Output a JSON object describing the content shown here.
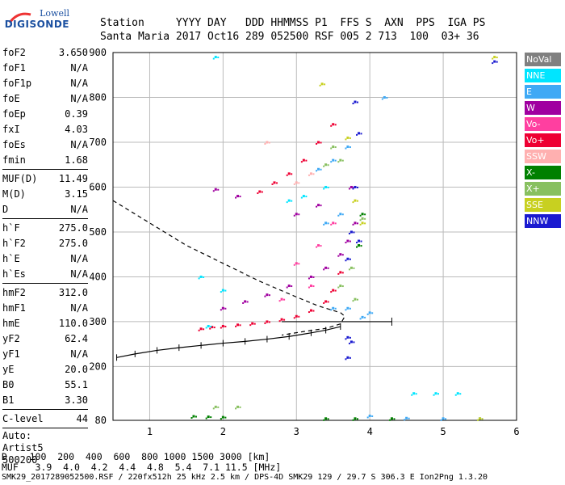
{
  "logo": {
    "line1": "Lowell",
    "line2": "DIGISONDE"
  },
  "header": {
    "labels_row": "Station     YYYY DAY   DDD HHMMSS P1  FFS S  AXN  PPS  IGA PS",
    "values_row": "Santa Maria 2017 Oct16 289 052500 RSF 005 2 713  100  03+ 36"
  },
  "params": [
    {
      "group": [
        {
          "key": "foF2",
          "value": "3.650"
        },
        {
          "key": "foF1",
          "value": "N/A"
        },
        {
          "key": "foF1p",
          "value": "N/A"
        },
        {
          "key": "foE",
          "value": "N/A"
        },
        {
          "key": "foEp",
          "value": "0.39"
        },
        {
          "key": "fxI",
          "value": "4.03"
        },
        {
          "key": "foEs",
          "value": "N/A"
        },
        {
          "key": "fmin",
          "value": "1.68"
        }
      ]
    },
    {
      "group": [
        {
          "key": "MUF(D)",
          "value": "11.49"
        },
        {
          "key": "M(D)",
          "value": "3.15"
        },
        {
          "key": "D",
          "value": "N/A"
        }
      ]
    },
    {
      "group": [
        {
          "key": "h`F",
          "value": "275.0"
        },
        {
          "key": "h`F2",
          "value": "275.0"
        },
        {
          "key": "h`E",
          "value": "N/A"
        },
        {
          "key": "h`Es",
          "value": "N/A"
        }
      ]
    },
    {
      "group": [
        {
          "key": "hmF2",
          "value": "312.0"
        },
        {
          "key": "hmF1",
          "value": "N/A"
        },
        {
          "key": "hmE",
          "value": "110.0"
        },
        {
          "key": "yF2",
          "value": "62.4"
        },
        {
          "key": "yF1",
          "value": "N/A"
        },
        {
          "key": "yE",
          "value": "20.0"
        },
        {
          "key": "B0",
          "value": "55.1"
        },
        {
          "key": "B1",
          "value": "3.30"
        }
      ]
    },
    {
      "group": [
        {
          "key": "C-level",
          "value": "44"
        }
      ]
    }
  ],
  "autoscaling": {
    "line1": "Auto:",
    "line2": "Artist5",
    "line3": "500200"
  },
  "legend": [
    {
      "label": "NoVal",
      "color": "#808080"
    },
    {
      "label": "NNE",
      "color": "#00e5ff"
    },
    {
      "label": "E",
      "color": "#3fa9f5"
    },
    {
      "label": "W",
      "color": "#a000a0"
    },
    {
      "label": "Vo-",
      "color": "#ff3fa0"
    },
    {
      "label": "Vo+",
      "color": "#ee0033"
    },
    {
      "label": "SSW",
      "color": "#ffb0b0"
    },
    {
      "label": "X-",
      "color": "#008000"
    },
    {
      "label": "X+",
      "color": "#88c060"
    },
    {
      "label": "SSE",
      "color": "#c8d020"
    },
    {
      "label": "NNW",
      "color": "#1a1ad0"
    }
  ],
  "chart_data": {
    "type": "scatter",
    "title": "",
    "xlabel": "",
    "ylabel": "",
    "xlim": [
      0.5,
      6.0
    ],
    "ylim": [
      80,
      900
    ],
    "x_ticks": [
      "1",
      "2",
      "3",
      "4",
      "5",
      "6"
    ],
    "x_tick_values": [
      1,
      2,
      3,
      4,
      5,
      6
    ],
    "y_ticks": [
      "80",
      "200",
      "300",
      "400",
      "500",
      "600",
      "700",
      "800",
      "900"
    ],
    "y_tick_values": [
      80,
      200,
      300,
      400,
      500,
      600,
      700,
      800,
      900
    ],
    "grid": true,
    "series": [
      {
        "legend": "Vo+",
        "color": "#ee0033",
        "points": [
          [
            1.7,
            284
          ],
          [
            1.85,
            288
          ],
          [
            2.0,
            290
          ],
          [
            2.2,
            293
          ],
          [
            2.4,
            296
          ],
          [
            2.6,
            300
          ],
          [
            2.8,
            305
          ],
          [
            3.0,
            312
          ],
          [
            3.2,
            325
          ],
          [
            3.4,
            345
          ],
          [
            3.5,
            370
          ],
          [
            3.6,
            410
          ],
          [
            2.5,
            590
          ],
          [
            2.7,
            610
          ],
          [
            2.9,
            630
          ],
          [
            3.1,
            660
          ],
          [
            3.3,
            700
          ],
          [
            3.5,
            740
          ]
        ]
      },
      {
        "legend": "W",
        "color": "#a000a0",
        "points": [
          [
            2.0,
            330
          ],
          [
            2.3,
            345
          ],
          [
            2.6,
            360
          ],
          [
            2.9,
            380
          ],
          [
            3.2,
            400
          ],
          [
            3.4,
            420
          ],
          [
            3.6,
            450
          ],
          [
            3.7,
            480
          ],
          [
            3.8,
            520
          ],
          [
            3.75,
            600
          ],
          [
            3.3,
            560
          ],
          [
            3.0,
            540
          ],
          [
            1.9,
            595
          ],
          [
            2.2,
            580
          ]
        ]
      },
      {
        "legend": "NNW",
        "color": "#1a1ad0",
        "points": [
          [
            3.7,
            440
          ],
          [
            3.75,
            500
          ],
          [
            3.8,
            600
          ],
          [
            3.85,
            720
          ],
          [
            3.8,
            790
          ],
          [
            3.7,
            265
          ],
          [
            3.75,
            255
          ],
          [
            3.7,
            220
          ],
          [
            3.85,
            480
          ],
          [
            5.7,
            880
          ]
        ]
      },
      {
        "legend": "E",
        "color": "#3fa9f5",
        "points": [
          [
            3.5,
            330
          ],
          [
            3.7,
            330
          ],
          [
            3.9,
            310
          ],
          [
            4.0,
            320
          ],
          [
            3.3,
            640
          ],
          [
            3.5,
            660
          ],
          [
            3.7,
            690
          ],
          [
            3.4,
            520
          ],
          [
            3.6,
            540
          ],
          [
            4.2,
            800
          ],
          [
            4.0,
            90
          ],
          [
            4.5,
            85
          ],
          [
            5.0,
            84
          ],
          [
            5.5,
            84
          ]
        ]
      },
      {
        "legend": "X+",
        "color": "#88c060",
        "points": [
          [
            3.6,
            380
          ],
          [
            3.75,
            420
          ],
          [
            3.85,
            470
          ],
          [
            3.9,
            530
          ],
          [
            3.8,
            350
          ],
          [
            3.4,
            650
          ],
          [
            3.6,
            660
          ],
          [
            3.5,
            690
          ],
          [
            1.9,
            110
          ],
          [
            2.2,
            110
          ]
        ]
      },
      {
        "legend": "X-",
        "color": "#008000",
        "points": [
          [
            3.85,
            470
          ],
          [
            3.9,
            540
          ],
          [
            1.6,
            89
          ],
          [
            1.8,
            88
          ],
          [
            2.0,
            87
          ],
          [
            3.4,
            84
          ],
          [
            3.8,
            84
          ],
          [
            4.3,
            84
          ]
        ]
      },
      {
        "legend": "NNE",
        "color": "#00e5ff",
        "points": [
          [
            1.8,
            290
          ],
          [
            2.9,
            570
          ],
          [
            3.1,
            580
          ],
          [
            3.4,
            600
          ],
          [
            1.7,
            400
          ],
          [
            2.0,
            370
          ],
          [
            4.6,
            140
          ],
          [
            4.9,
            140
          ],
          [
            5.2,
            140
          ],
          [
            1.9,
            890
          ]
        ]
      },
      {
        "legend": "Vo-",
        "color": "#ff3fa0",
        "points": [
          [
            3.0,
            430
          ],
          [
            3.3,
            470
          ],
          [
            3.5,
            520
          ],
          [
            2.8,
            350
          ],
          [
            3.2,
            380
          ]
        ]
      },
      {
        "legend": "SSE",
        "color": "#c8d020",
        "points": [
          [
            3.8,
            570
          ],
          [
            3.9,
            520
          ],
          [
            3.35,
            830
          ],
          [
            3.7,
            710
          ],
          [
            5.7,
            890
          ],
          [
            5.5,
            84
          ]
        ]
      },
      {
        "legend": "SSW",
        "color": "#ffb0b0",
        "points": [
          [
            3.0,
            610
          ],
          [
            3.2,
            630
          ],
          [
            2.6,
            700
          ]
        ]
      }
    ],
    "profile_curve": [
      [
        0.5,
        570
      ],
      [
        1.0,
        520
      ],
      [
        1.5,
        470
      ],
      [
        2.0,
        430
      ],
      [
        2.5,
        390
      ],
      [
        3.0,
        355
      ],
      [
        3.3,
        335
      ],
      [
        3.6,
        320
      ],
      [
        3.66,
        312
      ],
      [
        3.6,
        295
      ],
      [
        3.4,
        285
      ],
      [
        3.1,
        278
      ],
      [
        2.8,
        270
      ]
    ],
    "trace_curve": [
      [
        0.55,
        220
      ],
      [
        0.8,
        228
      ],
      [
        1.1,
        236
      ],
      [
        1.4,
        242
      ],
      [
        1.7,
        247
      ],
      [
        2.0,
        252
      ],
      [
        2.3,
        256
      ],
      [
        2.6,
        261
      ],
      [
        2.9,
        267
      ],
      [
        3.2,
        275
      ],
      [
        3.4,
        281
      ],
      [
        3.6,
        289
      ]
    ],
    "hline": {
      "y": 300,
      "x0": 2.8,
      "x1": 4.3
    }
  },
  "bottom": {
    "d_row": "D    100  200  400  600  800 1000 1500 3000 [km]",
    "muf_row": "MUF   3.9  4.0  4.2  4.4  4.8  5.4  7.1 11.5 [MHz]",
    "footer": "SMK29_2017289052500.RSF / 220fx512h 25 kHz 2.5 km / DPS-4D SMK29 129 / 29.7 S 306.3 E Ion2Png 1.3.20"
  }
}
